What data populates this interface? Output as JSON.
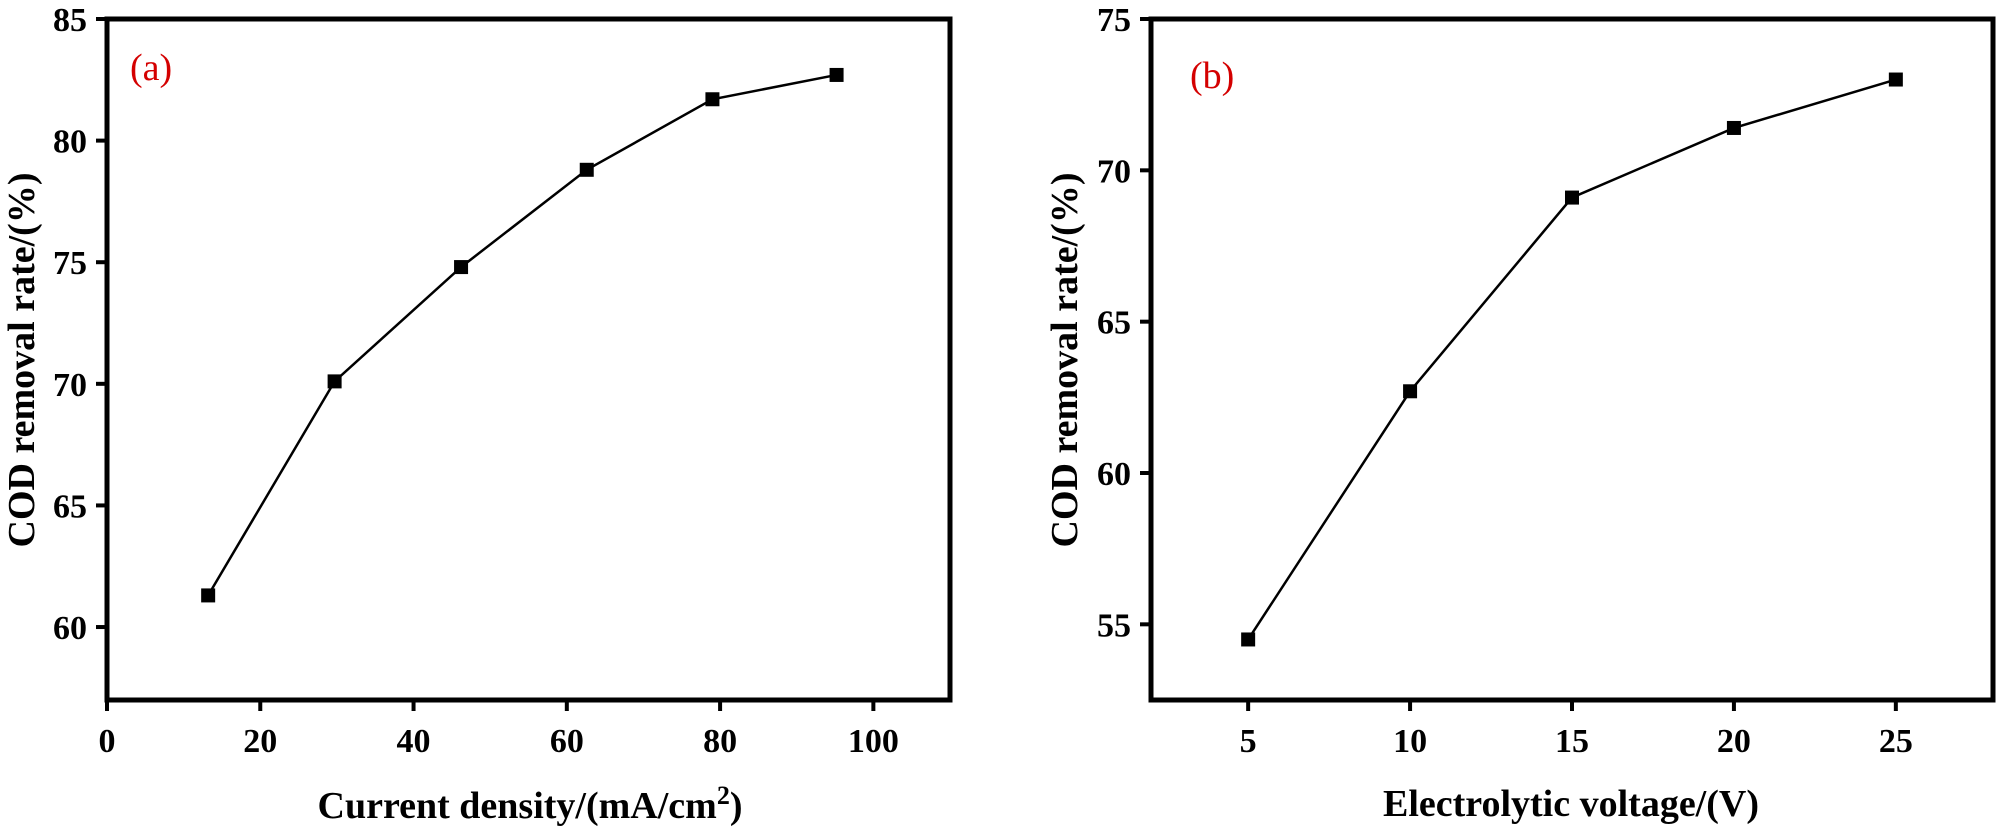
{
  "chart_data": [
    {
      "type": "line",
      "panel_label": "(a)",
      "panel_label_color": "#d40000",
      "xlabel": "Current density/(mA/cm",
      "xlabel_sup": "2",
      "xlabel_tail": ")",
      "ylabel": "COD removal rate/(%)",
      "xlim": [
        0,
        110
      ],
      "ylim": [
        57,
        85
      ],
      "xticks": [
        0,
        20,
        40,
        60,
        80,
        100
      ],
      "yticks": [
        60,
        65,
        70,
        75,
        80,
        85
      ],
      "series": [
        {
          "x": [
            13.2,
            29.7,
            46.2,
            62.6,
            79.0,
            95.2
          ],
          "y": [
            61.3,
            70.1,
            74.8,
            78.8,
            81.7,
            82.7
          ],
          "color": "#000000",
          "marker": "square"
        }
      ],
      "grid": false
    },
    {
      "type": "line",
      "panel_label": "(b)",
      "panel_label_color": "#d40000",
      "xlabel": "Electrolytic voltage/(V)",
      "ylabel": "COD removal rate/(%)",
      "xlim": [
        2,
        28
      ],
      "ylim": [
        52.5,
        75
      ],
      "xticks": [
        5,
        10,
        15,
        20,
        25
      ],
      "yticks": [
        55,
        60,
        65,
        70,
        75
      ],
      "series": [
        {
          "x": [
            5,
            10,
            15,
            20,
            25
          ],
          "y": [
            54.5,
            62.7,
            69.1,
            71.4,
            73.0
          ],
          "color": "#000000",
          "marker": "square"
        }
      ],
      "grid": false
    }
  ]
}
